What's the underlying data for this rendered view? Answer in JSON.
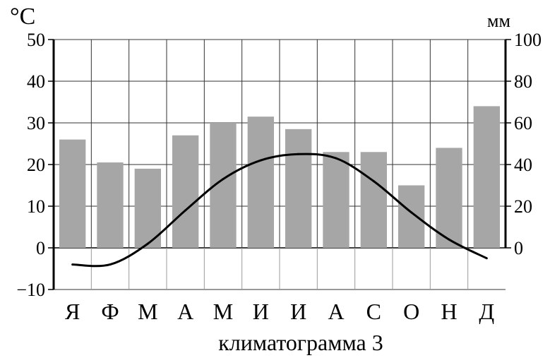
{
  "chart_data": {
    "type": "bar+line",
    "title": "климатограмма 3",
    "left_axis_unit": "°C",
    "right_axis_unit": "мм",
    "categories": [
      "Я",
      "Ф",
      "М",
      "А",
      "М",
      "И",
      "И",
      "А",
      "С",
      "О",
      "Н",
      "Д"
    ],
    "temperature_ylim": [
      -10,
      50
    ],
    "temperature_ticks": [
      "-10",
      "0",
      "10",
      "20",
      "30",
      "40",
      "50"
    ],
    "precipitation_ylim": [
      0,
      100
    ],
    "precipitation_ticks": [
      "0",
      "20",
      "40",
      "60",
      "80",
      "100"
    ],
    "series": [
      {
        "name": "",
        "kind": "bar",
        "axis": "right",
        "unit": "мм",
        "color": "#a6a6a6",
        "values": [
          52,
          41,
          38,
          54,
          60,
          63,
          57,
          46,
          46,
          30,
          48,
          68
        ]
      },
      {
        "name": "",
        "kind": "line",
        "axis": "left",
        "unit": "°C",
        "color": "#000000",
        "values": [
          -4,
          -4,
          1,
          9,
          16.5,
          21,
          22.5,
          21.5,
          16,
          8.5,
          2,
          -2.5
        ]
      }
    ],
    "grid": true
  }
}
